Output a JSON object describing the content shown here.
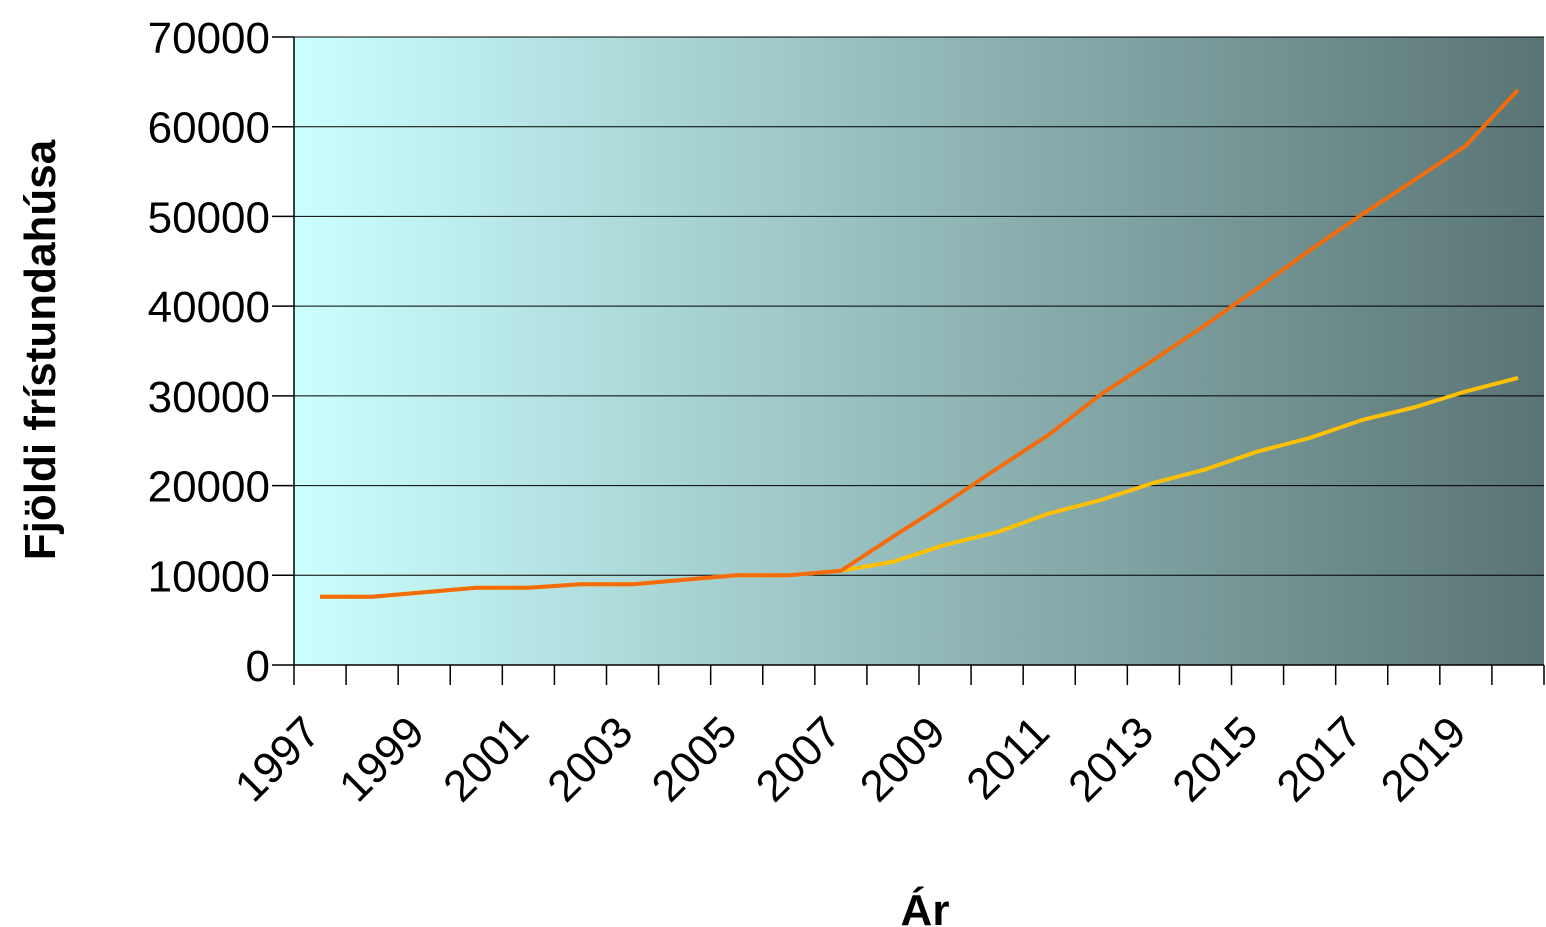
{
  "chart_data": {
    "type": "line",
    "xlabel": "Ár",
    "ylabel": "Fjöldi frístundahúsa",
    "ylim": [
      0,
      70000
    ],
    "yticks": [
      0,
      10000,
      20000,
      30000,
      40000,
      50000,
      60000,
      70000
    ],
    "xtick_labels": [
      "1997",
      "1999",
      "2001",
      "2003",
      "2005",
      "2007",
      "2009",
      "2011",
      "2013",
      "2015",
      "2017",
      "2019"
    ],
    "grid": "horizontal",
    "legend": "none",
    "x": [
      1997,
      1998,
      1999,
      2000,
      2001,
      2002,
      2003,
      2004,
      2005,
      2006,
      2007,
      2008,
      2009,
      2010,
      2011,
      2012,
      2013,
      2014,
      2015,
      2016,
      2017,
      2018,
      2019,
      2020
    ],
    "series": [
      {
        "color": "#FFC000",
        "values": [
          7600,
          7600,
          8100,
          8600,
          8600,
          9000,
          9000,
          9500,
          10000,
          10000,
          10500,
          11500,
          13400,
          14800,
          16900,
          18400,
          20300,
          21800,
          23800,
          25300,
          27300,
          28700,
          30500,
          32000
        ]
      },
      {
        "color": "#F36C0C",
        "values": [
          7600,
          7600,
          8100,
          8600,
          8600,
          9000,
          9000,
          9500,
          10000,
          10000,
          10500,
          14300,
          18000,
          21900,
          25700,
          30200,
          34000,
          37900,
          42000,
          46200,
          50200,
          54000,
          57900,
          64100
        ]
      }
    ],
    "plot_background": {
      "gradient_from": "#CCFFFF",
      "gradient_to": "#5A7474"
    }
  }
}
